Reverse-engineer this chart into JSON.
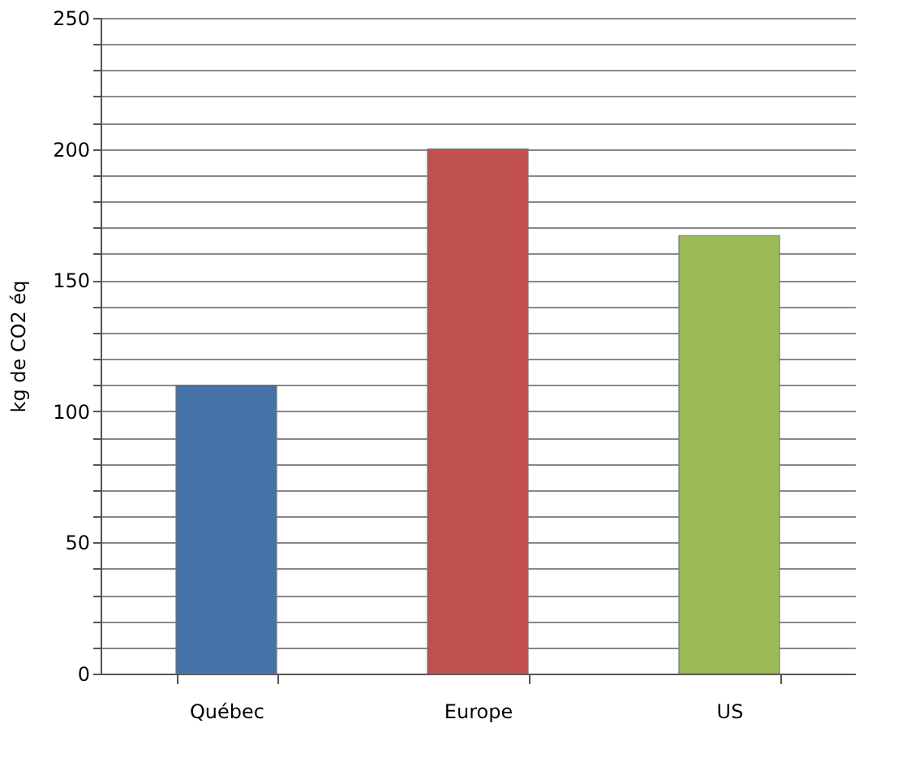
{
  "chart_data": {
    "type": "bar",
    "ylabel": "kg de CO2 éq",
    "categories": [
      "Québec",
      "Europe",
      "US"
    ],
    "values": [
      110,
      200,
      167
    ],
    "colors": [
      "#4572a7",
      "#c0504d",
      "#9bbb59"
    ],
    "ylim": [
      0,
      250
    ],
    "yticks": [
      0,
      {
        "value": 10,
        "label": null
      },
      {
        "value": 20,
        "label": null
      },
      {
        "value": 30,
        "label": null
      },
      {
        "value": 40,
        "label": null
      },
      50,
      {
        "value": 60,
        "label": null
      },
      {
        "value": 70,
        "label": null
      },
      {
        "value": 80,
        "label": null
      },
      {
        "value": 90,
        "label": null
      },
      100,
      {
        "value": 110,
        "label": null
      },
      {
        "value": 120,
        "label": null
      },
      {
        "value": 130,
        "label": null
      },
      {
        "value": 140,
        "label": null
      },
      150,
      {
        "value": 160,
        "label": null
      },
      {
        "value": 170,
        "label": null
      },
      {
        "value": 180,
        "label": null
      },
      {
        "value": 190,
        "label": null
      },
      200,
      {
        "value": 210,
        "label": null
      },
      {
        "value": 220,
        "label": null
      },
      {
        "value": 230,
        "label": null
      },
      {
        "value": 240,
        "label": null
      },
      250
    ],
    "grid": "y"
  }
}
